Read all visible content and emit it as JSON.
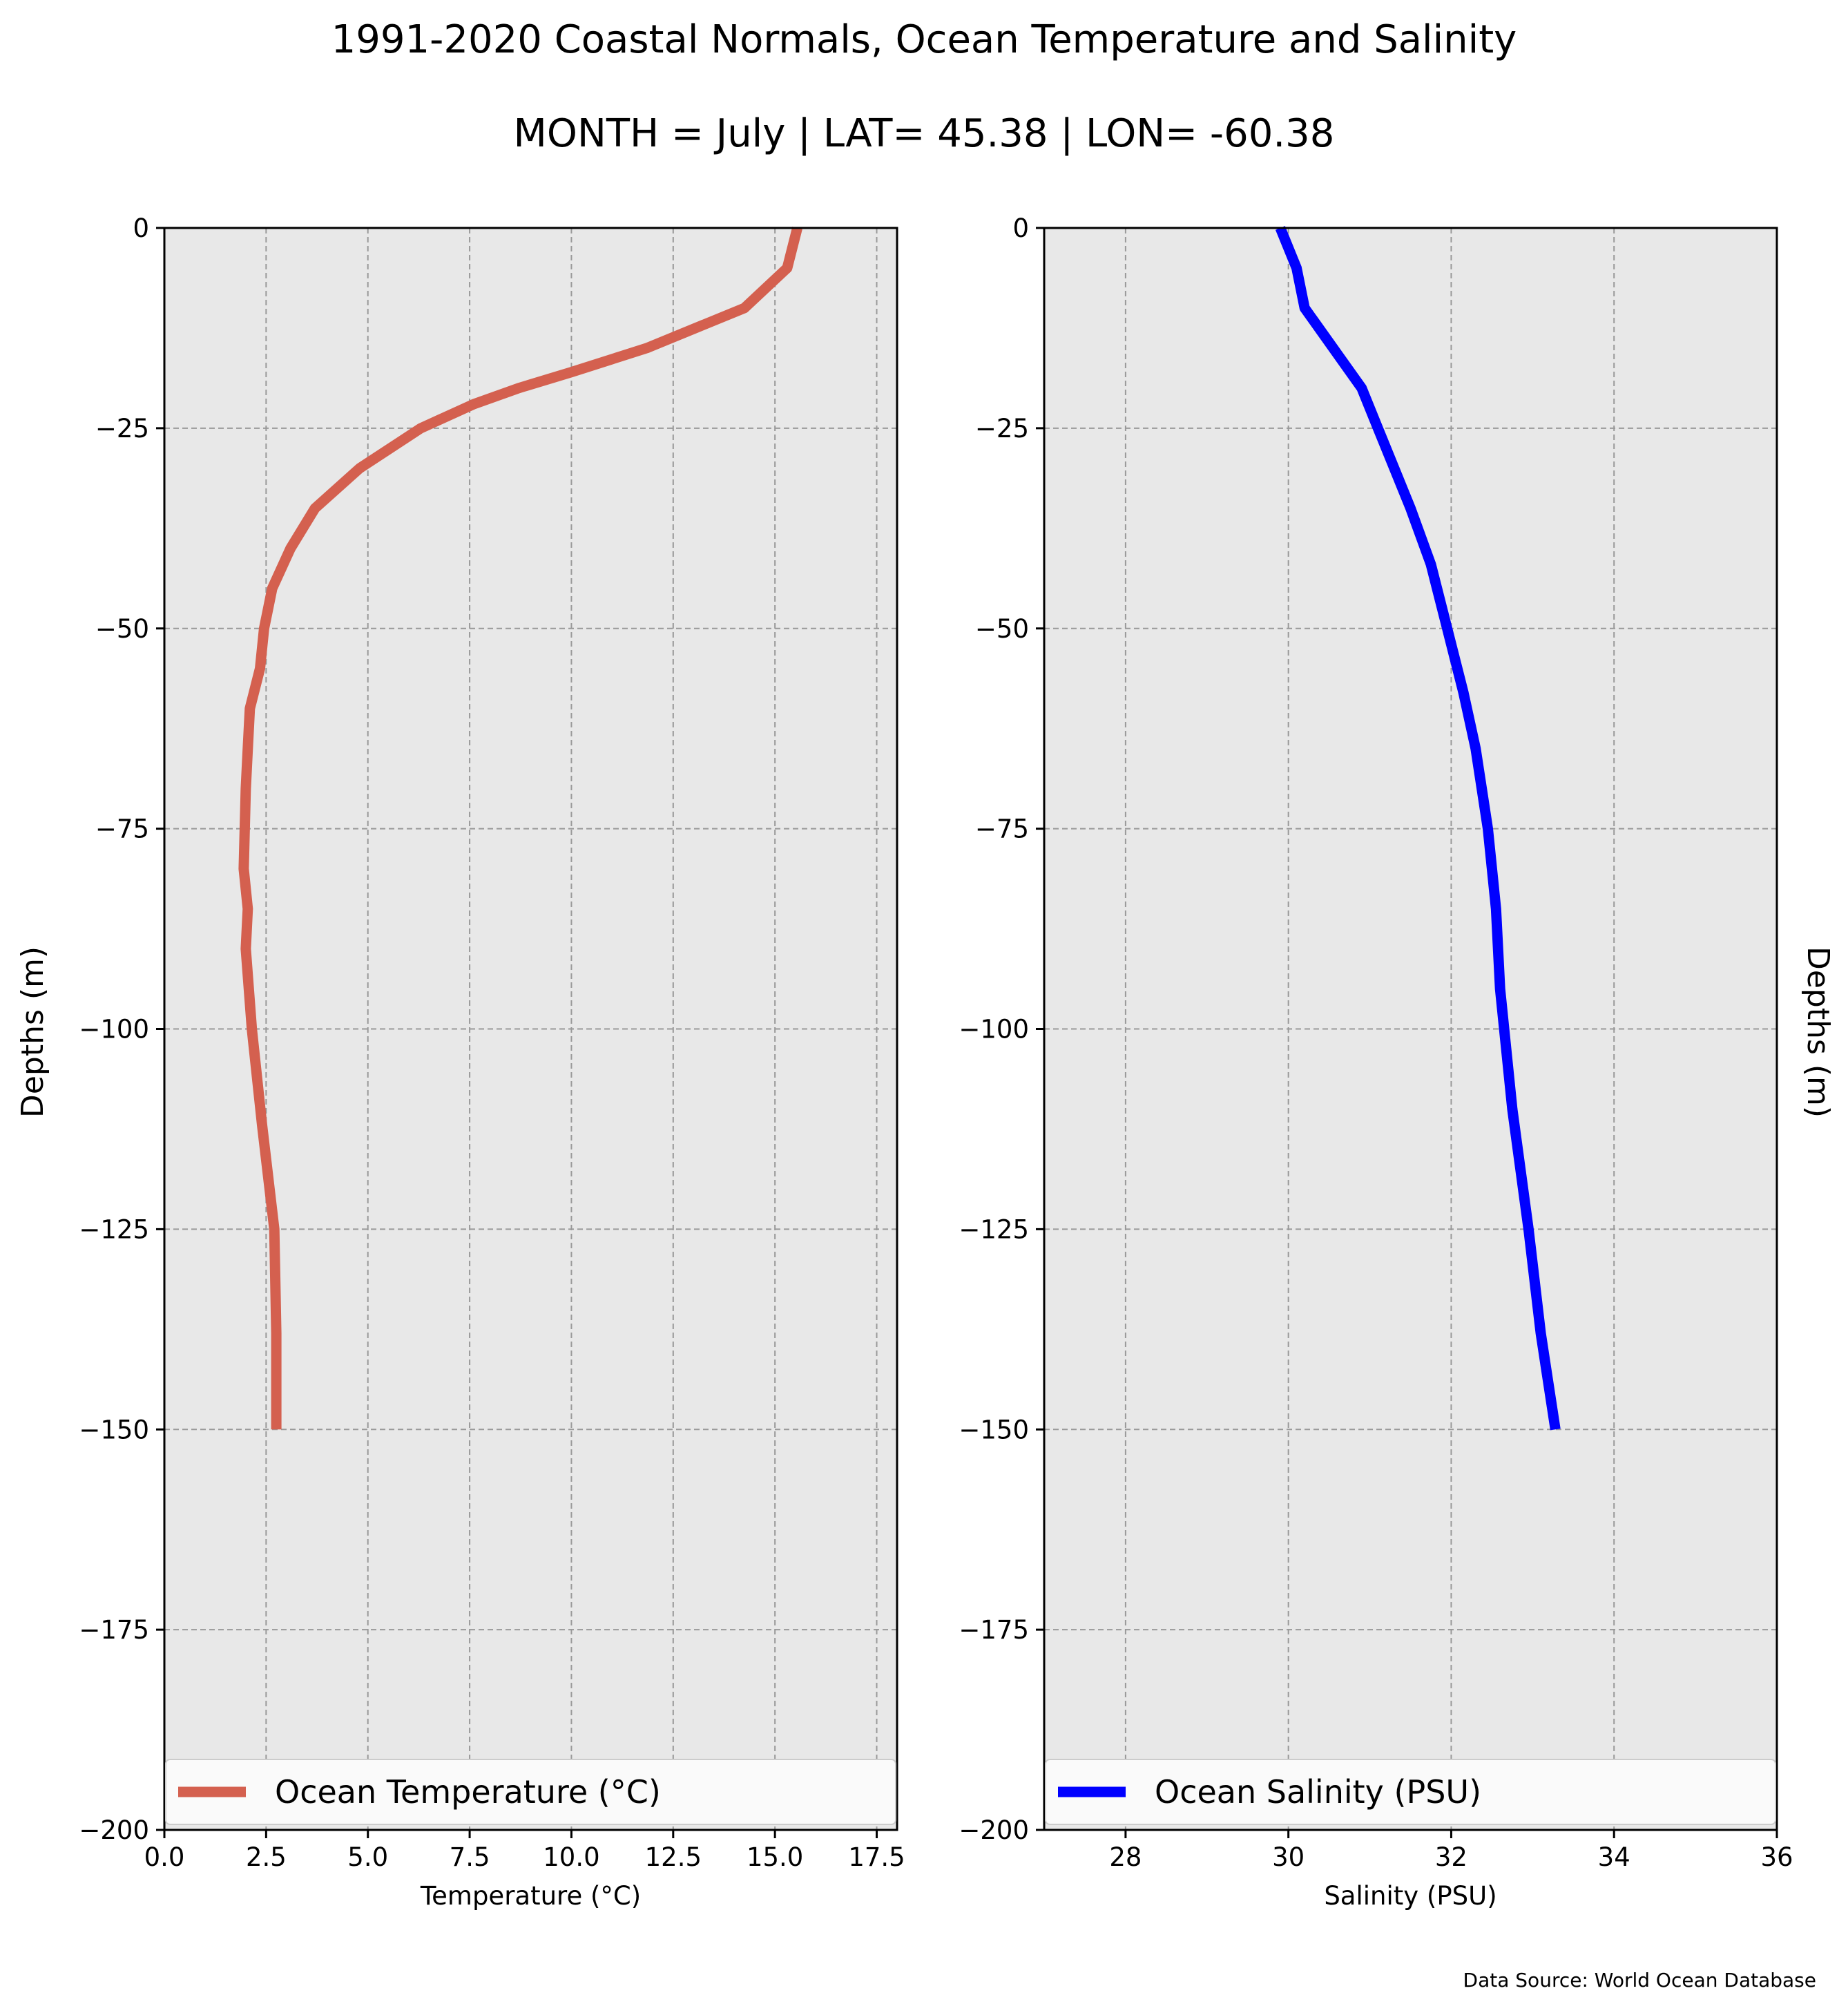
{
  "figure": {
    "title": "1991-2020 Coastal Normals, Ocean Temperature and Salinity",
    "subtitle": "MONTH = July | LAT= 45.38 | LON= -60.38",
    "source": "Data Source: World Ocean Database",
    "background": "#ffffff",
    "panel_background": "#e8e8e8",
    "grid_color": "#999999"
  },
  "chart_data": [
    {
      "type": "line",
      "orientation": "profile",
      "xlabel": "Temperature (°C)",
      "ylabel": "Depths (m)",
      "xlim": [
        0,
        18
      ],
      "ylim": [
        -200,
        0
      ],
      "x_ticks": [
        0.0,
        2.5,
        5.0,
        7.5,
        10.0,
        12.5,
        15.0,
        17.5
      ],
      "x_tick_labels": [
        "0.0",
        "2.5",
        "5.0",
        "7.5",
        "10.0",
        "12.5",
        "15.0",
        "17.5"
      ],
      "y_ticks": [
        0,
        -25,
        -50,
        -75,
        -100,
        -125,
        -150,
        -175,
        -200
      ],
      "y_tick_labels": [
        "0",
        "−25",
        "−50",
        "−75",
        "−100",
        "−125",
        "−150",
        "−175",
        "−200"
      ],
      "grid": true,
      "legend_position": "lower-center",
      "series": [
        {
          "name": "Ocean Temperature (°C)",
          "color": "#d4604f",
          "x": [
            15.55,
            15.3,
            14.25,
            11.85,
            10.0,
            8.7,
            7.6,
            6.3,
            4.8,
            3.7,
            3.1,
            2.65,
            2.45,
            2.35,
            2.1,
            2.05,
            2.0,
            1.95,
            2.05,
            2.0,
            2.15,
            2.4,
            2.7,
            2.75,
            2.75
          ],
          "y": [
            0,
            -5,
            -10,
            -15,
            -18,
            -20,
            -22,
            -25,
            -30,
            -35,
            -40,
            -45,
            -50,
            -55,
            -60,
            -65,
            -70,
            -80,
            -85,
            -90,
            -100,
            -112,
            -125,
            -138,
            -150
          ]
        }
      ]
    },
    {
      "type": "line",
      "orientation": "profile",
      "xlabel": "Salinity (PSU)",
      "ylabel": "Depths (m)",
      "xlim": [
        27,
        36
      ],
      "ylim": [
        -200,
        0
      ],
      "x_ticks": [
        28,
        30,
        32,
        34,
        36
      ],
      "x_tick_labels": [
        "28",
        "30",
        "32",
        "34",
        "36"
      ],
      "y_ticks": [
        0,
        -25,
        -50,
        -75,
        -100,
        -125,
        -150,
        -175,
        -200
      ],
      "y_tick_labels": [
        "0",
        "−25",
        "−50",
        "−75",
        "−100",
        "−125",
        "−150",
        "−175",
        "−200"
      ],
      "grid": true,
      "legend_position": "lower-center",
      "series": [
        {
          "name": "Ocean Salinity (PSU)",
          "color": "#0000ff",
          "x": [
            29.9,
            30.1,
            30.2,
            30.55,
            30.9,
            31.1,
            31.3,
            31.5,
            31.75,
            31.95,
            32.15,
            32.3,
            32.45,
            32.55,
            32.6,
            32.75,
            32.95,
            33.1,
            33.28
          ],
          "y": [
            0,
            -5,
            -10,
            -15,
            -20,
            -25,
            -30,
            -35,
            -42,
            -50,
            -58,
            -65,
            -75,
            -85,
            -95,
            -110,
            -125,
            -138,
            -150
          ]
        }
      ]
    }
  ]
}
